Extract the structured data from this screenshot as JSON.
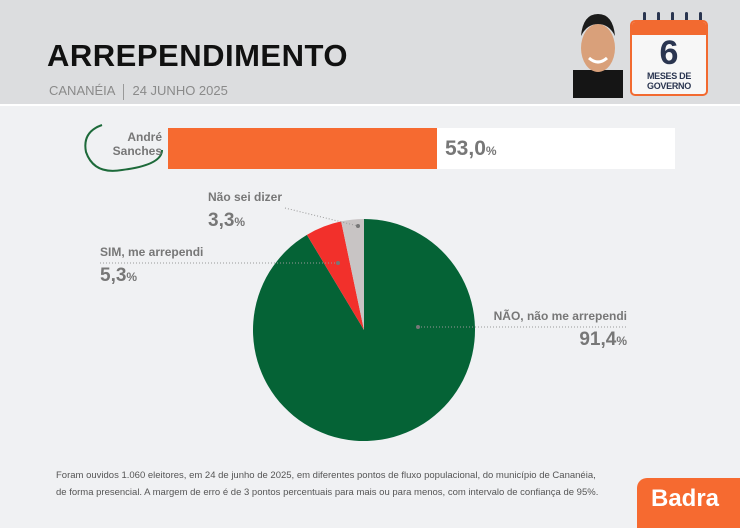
{
  "header": {
    "title": "ARREPENDIMENTO",
    "city": "CANANÉIA",
    "date": "24 JUNHO 2025",
    "calendar_number": "6",
    "calendar_label": "MESES DE GOVERNO"
  },
  "bar": {
    "name_line1": "André",
    "name_line2": "Sanches",
    "value": 53.0,
    "value_text": "53,0",
    "unit": "%",
    "color": "#f66a30"
  },
  "chart_data": {
    "type": "pie",
    "slices": [
      {
        "label": "NÃO, não me arrependi",
        "value": 91.4,
        "value_text": "91,4",
        "color": "#056336"
      },
      {
        "label": "SIM, me arrependi",
        "value": 5.3,
        "value_text": "5,3",
        "color": "#f2302b"
      },
      {
        "label": "Não sei dizer",
        "value": 3.3,
        "value_text": "3,3",
        "color": "#c8c4c4"
      }
    ],
    "unit": "%"
  },
  "footer": {
    "note_line1": "Foram ouvidos 1.060 eleitores, em 24 de junho de 2025, em diferentes pontos de fluxo populacional, do município de Cananéia,",
    "note_line2": "de forma presencial. A margem de erro é de 3 pontos percentuais para mais ou para menos, com intervalo de confiança de 95%.",
    "brand": "Badra"
  }
}
